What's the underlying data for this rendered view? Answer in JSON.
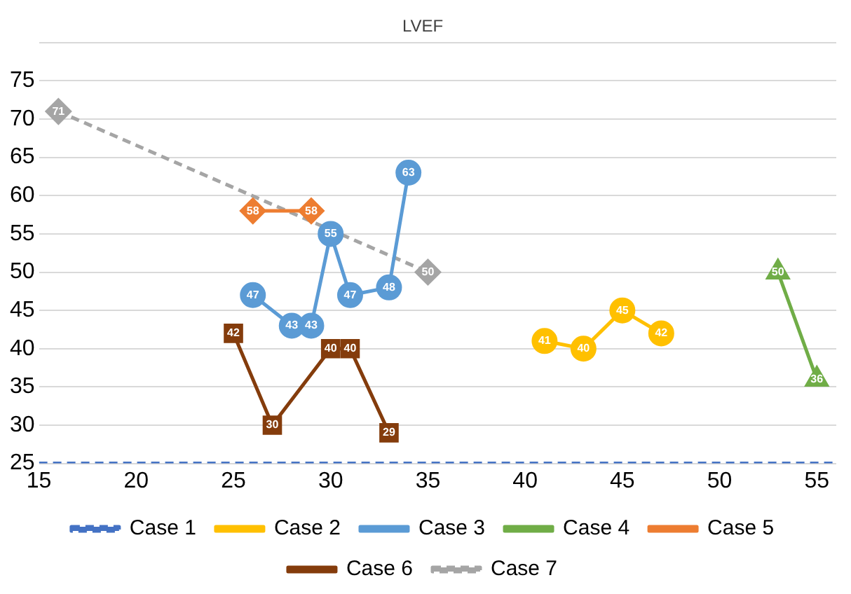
{
  "chart_data": {
    "type": "line",
    "title": "LVEF",
    "xlim": [
      15,
      56
    ],
    "xticks": [
      15,
      20,
      25,
      30,
      35,
      40,
      45,
      50,
      55
    ],
    "ylim": [
      25,
      80
    ],
    "yticks": [
      25,
      30,
      35,
      40,
      45,
      50,
      55,
      60,
      65,
      70,
      75,
      {
        "value": 80,
        "label": null
      }
    ],
    "grid": "y",
    "legend": "bottom",
    "series": [
      {
        "name": "Case 1",
        "color": "#4472c4",
        "x": [
          15,
          56
        ],
        "values": [
          25,
          25
        ],
        "marker": "none",
        "line_style": "dashed",
        "value_labels": [
          null,
          null
        ]
      },
      {
        "name": "Case 2",
        "color": "#ffc000",
        "x": [
          41,
          43,
          45,
          47
        ],
        "values": [
          41,
          40,
          45,
          42
        ],
        "marker": "circle",
        "value_labels": [
          "41",
          "40",
          "45",
          "42"
        ]
      },
      {
        "name": "Case 3",
        "color": "#5b9bd5",
        "x": [
          26,
          28,
          29,
          30,
          31,
          33,
          34
        ],
        "values": [
          47,
          43,
          43,
          55,
          47,
          48,
          63
        ],
        "marker": "circle",
        "value_labels": [
          "47",
          "43",
          "43",
          "55",
          "47",
          "48",
          "63"
        ]
      },
      {
        "name": "Case 4",
        "color": "#70ad47",
        "x": [
          53,
          55
        ],
        "values": [
          50,
          36
        ],
        "marker": "triangle",
        "value_labels": [
          "50",
          "36"
        ]
      },
      {
        "name": "Case 5",
        "color": "#ed7d31",
        "x": [
          26,
          29
        ],
        "values": [
          58,
          58
        ],
        "marker": "diamond",
        "value_labels": [
          "58",
          "58"
        ]
      },
      {
        "name": "Case 6",
        "color": "#843c0c",
        "x": [
          25,
          27,
          30,
          31,
          33
        ],
        "values": [
          42,
          30,
          40,
          40,
          29
        ],
        "marker": "square",
        "value_labels": [
          "42",
          "30",
          "40",
          "40",
          "29"
        ]
      },
      {
        "name": "Case 7",
        "color": "#a5a5a5",
        "x": [
          16,
          35
        ],
        "values": [
          71,
          50
        ],
        "marker": "diamond",
        "line_style": "dashed",
        "value_labels": [
          "71",
          "50"
        ]
      }
    ]
  }
}
